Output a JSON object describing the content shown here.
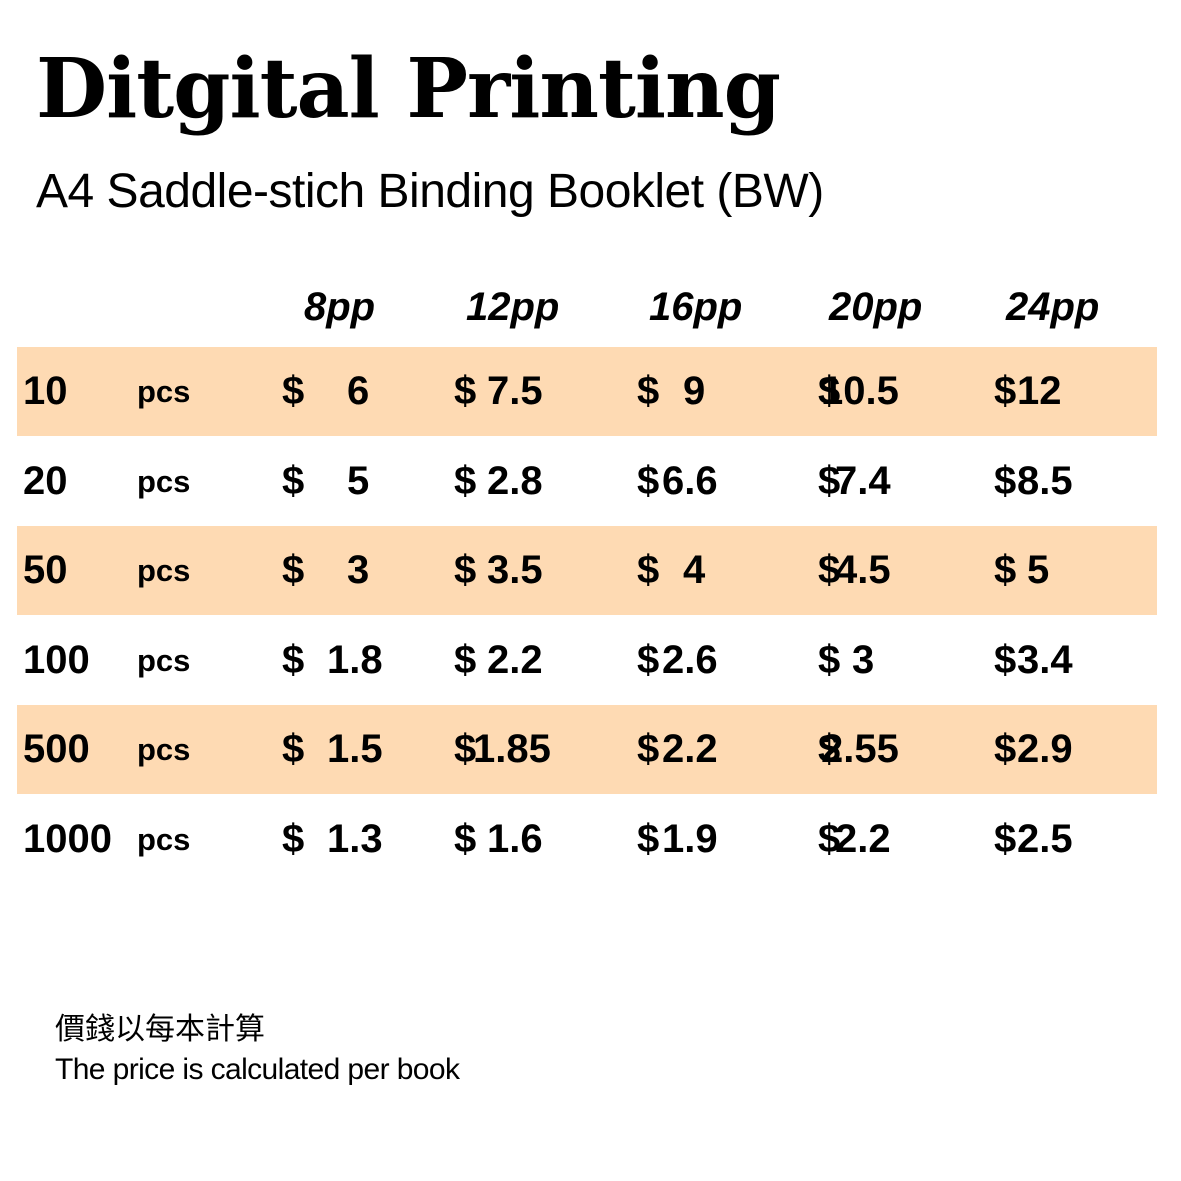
{
  "title": "Ditgital Printing",
  "subtitle": "A4 Saddle-stich Binding Booklet (BW)",
  "columns": [
    "8pp",
    "12pp",
    "16pp",
    "20pp",
    "24pp"
  ],
  "currency_symbol": "$",
  "unit_label": "pcs",
  "rows": [
    {
      "qty": "10",
      "prices": [
        "6",
        "7.5",
        "9",
        "10.5",
        "12"
      ]
    },
    {
      "qty": "20",
      "prices": [
        "5",
        "2.8",
        "6.6",
        "7.4",
        "8.5"
      ]
    },
    {
      "qty": "50",
      "prices": [
        "3",
        "3.5",
        "4",
        "4.5",
        "5"
      ]
    },
    {
      "qty": "100",
      "prices": [
        "1.8",
        "2.2",
        "2.6",
        "3",
        "3.4"
      ]
    },
    {
      "qty": "500",
      "prices": [
        "1.5",
        "1.85",
        "2.2",
        "2.55",
        "2.9"
      ]
    },
    {
      "qty": "1000",
      "prices": [
        "1.3",
        "1.6",
        "1.9",
        "2.2",
        "2.5"
      ]
    }
  ],
  "colors": {
    "row_shade": "#fedab3",
    "text": "#000000",
    "background": "#ffffff"
  },
  "note_zh": "價錢以每本計算",
  "note_en": "The price is calculated per book"
}
